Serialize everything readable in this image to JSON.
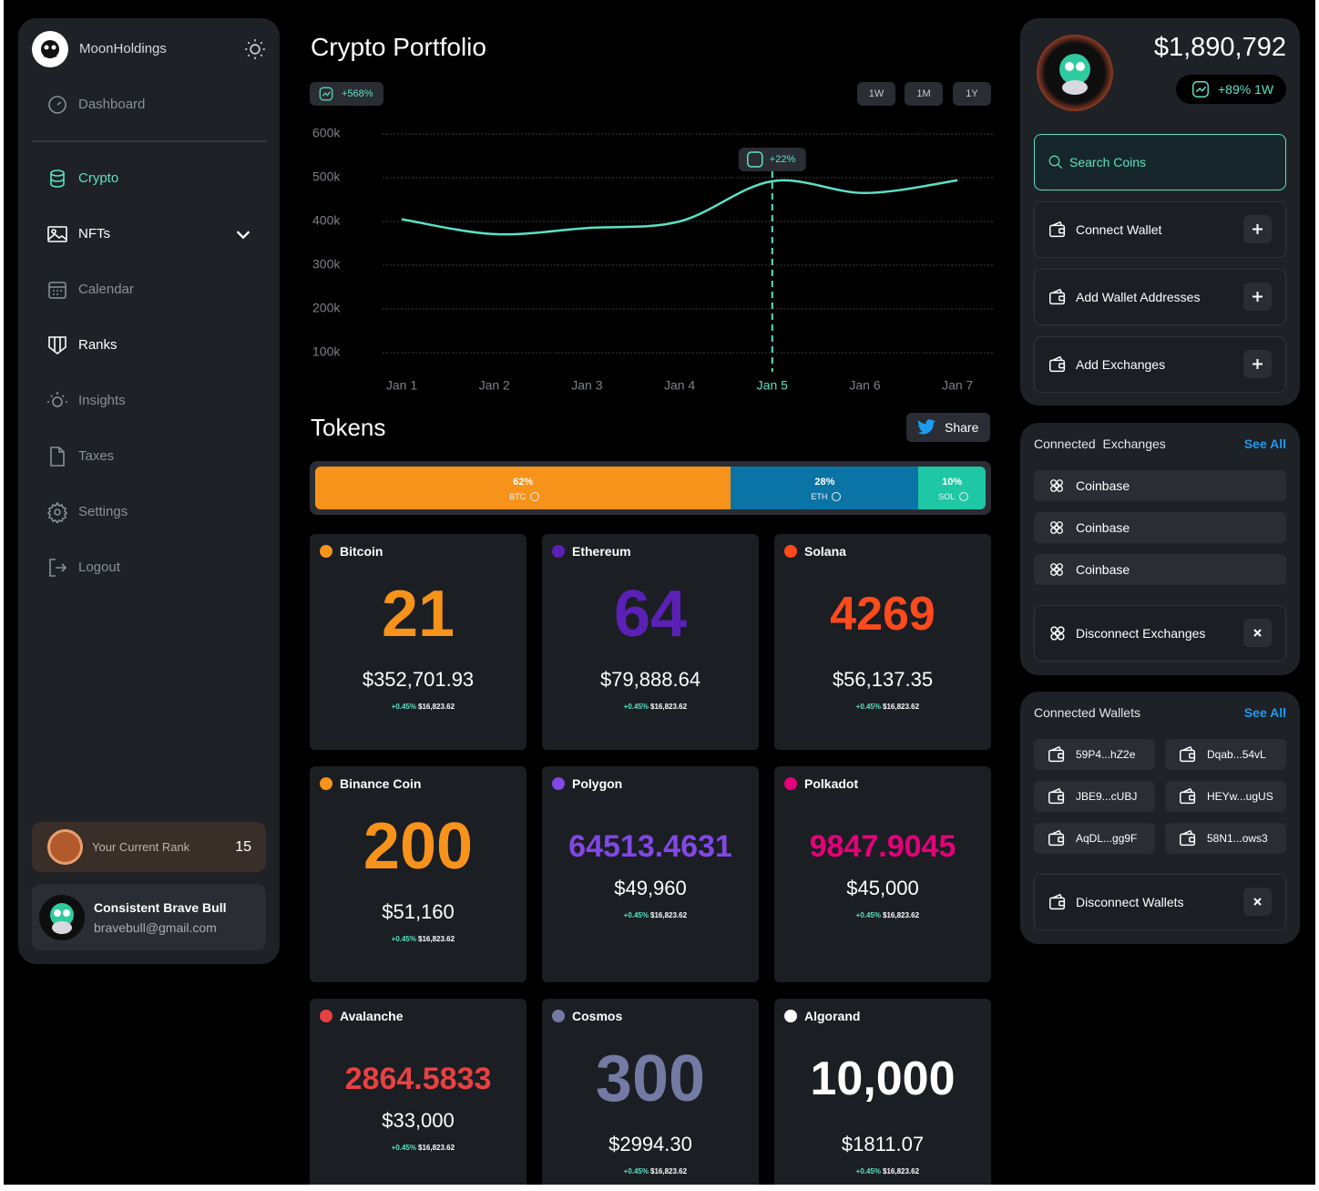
{
  "sidebar": {
    "brand": "MoonHoldings",
    "nav": [
      {
        "label": "Dashboard"
      },
      {
        "label": "Crypto",
        "active": true
      },
      {
        "label": "NFTs"
      },
      {
        "label": "Calendar"
      },
      {
        "label": "Ranks"
      },
      {
        "label": "Insights"
      },
      {
        "label": "Taxes"
      },
      {
        "label": "Settings"
      },
      {
        "label": "Logout"
      }
    ],
    "rank": {
      "label": "Your Current Rank",
      "value": "15"
    },
    "user": {
      "name": "Consistent Brave Bull",
      "email": "bravebull@gmail.com"
    }
  },
  "portfolio": {
    "title": "Crypto Portfolio",
    "change": "+568%",
    "ranges": [
      "1W",
      "1M",
      "1Y"
    ]
  },
  "chart_data": {
    "type": "line",
    "categories": [
      "Jan 1",
      "Jan 2",
      "Jan 3",
      "Jan 4",
      "Jan 5",
      "Jan 6",
      "Jan 7"
    ],
    "values": [
      405000,
      371000,
      385000,
      400000,
      492000,
      465000,
      494000
    ],
    "color": "#5ce1c6",
    "ylim": [
      75000,
      600000
    ],
    "yticks": [
      {
        "value": 100000,
        "label": "100k"
      },
      {
        "value": 200000,
        "label": "200k"
      },
      {
        "value": 300000,
        "label": "300k"
      },
      {
        "value": 400000,
        "label": "400k"
      },
      {
        "value": 500000,
        "label": "500k"
      },
      {
        "value": 600000,
        "label": "600k"
      }
    ],
    "grid": true,
    "annotation": {
      "x": "Jan 5",
      "text": "+22%"
    }
  },
  "tokens_section": {
    "title": "Tokens",
    "share": "Share",
    "allocation": [
      {
        "name": "BTC",
        "value": 62,
        "label": "62%",
        "color": "#f7931a"
      },
      {
        "name": "ETH",
        "value": 28,
        "label": "28%",
        "color": "#0b74a6"
      },
      {
        "name": "SOL",
        "value": 10,
        "label": "10%",
        "color": "#1ec8a5"
      }
    ],
    "tokens": [
      {
        "name": "Bitcoin",
        "amount": "21",
        "value": "$352,701.93",
        "change": "+0.45%",
        "price": "$16,823.62",
        "color": "#f7931a"
      },
      {
        "name": "Ethereum",
        "amount": "64",
        "value": "$79,888.64",
        "change": "+0.45%",
        "price": "$16,823.62",
        "color": "#5b21b6"
      },
      {
        "name": "Solana",
        "amount": "4269",
        "value": "$56,137.35",
        "change": "+0.45%",
        "price": "$16,823.62",
        "color": "#ff4a1c"
      },
      {
        "name": "Binance Coin",
        "amount": "200",
        "value": "$51,160",
        "change": "+0.45%",
        "price": "$16,823.62",
        "color": "#f7931a"
      },
      {
        "name": "Polygon",
        "amount": "64513.4631",
        "value": "$49,960",
        "change": "+0.45%",
        "price": "$16,823.62",
        "color": "#8247e5"
      },
      {
        "name": "Polkadot",
        "amount": "9847.9045",
        "value": "$45,000",
        "change": "+0.45%",
        "price": "$16,823.62",
        "color": "#e6007a"
      },
      {
        "name": "Avalanche",
        "amount": "2864.5833",
        "value": "$33,000",
        "change": "+0.45%",
        "price": "$16,823.62",
        "color": "#e84142"
      },
      {
        "name": "Cosmos",
        "amount": "300",
        "value": "$2994.30",
        "change": "+0.45%",
        "price": "$16,823.62",
        "color": "#737aa3"
      },
      {
        "name": "Algorand",
        "amount": "10,000",
        "value": "$1811.07",
        "change": "+0.45%",
        "price": "$16,823.62",
        "color": "#ffffff"
      }
    ]
  },
  "account": {
    "balance": "$1,890,792",
    "change": "+89% 1W",
    "search": "Search Coins",
    "actions": [
      "Connect Wallet",
      "Add Wallet Addresses",
      "Add Exchanges"
    ]
  },
  "exchanges": {
    "title": "Connected  Exchanges",
    "see_all": "See All",
    "items": [
      "Coinbase",
      "Coinbase",
      "Coinbase"
    ],
    "disconnect": "Disconnect Exchanges"
  },
  "wallets": {
    "title": "Connected Wallets",
    "see_all": "See All",
    "items": [
      "59P4...hZ2e",
      "Dqab...54vL",
      "JBE9...cUBJ",
      "HEYw...ugUS",
      "AqDL...gg9F",
      "58N1...ows3"
    ],
    "disconnect": "Disconnect Wallets"
  }
}
